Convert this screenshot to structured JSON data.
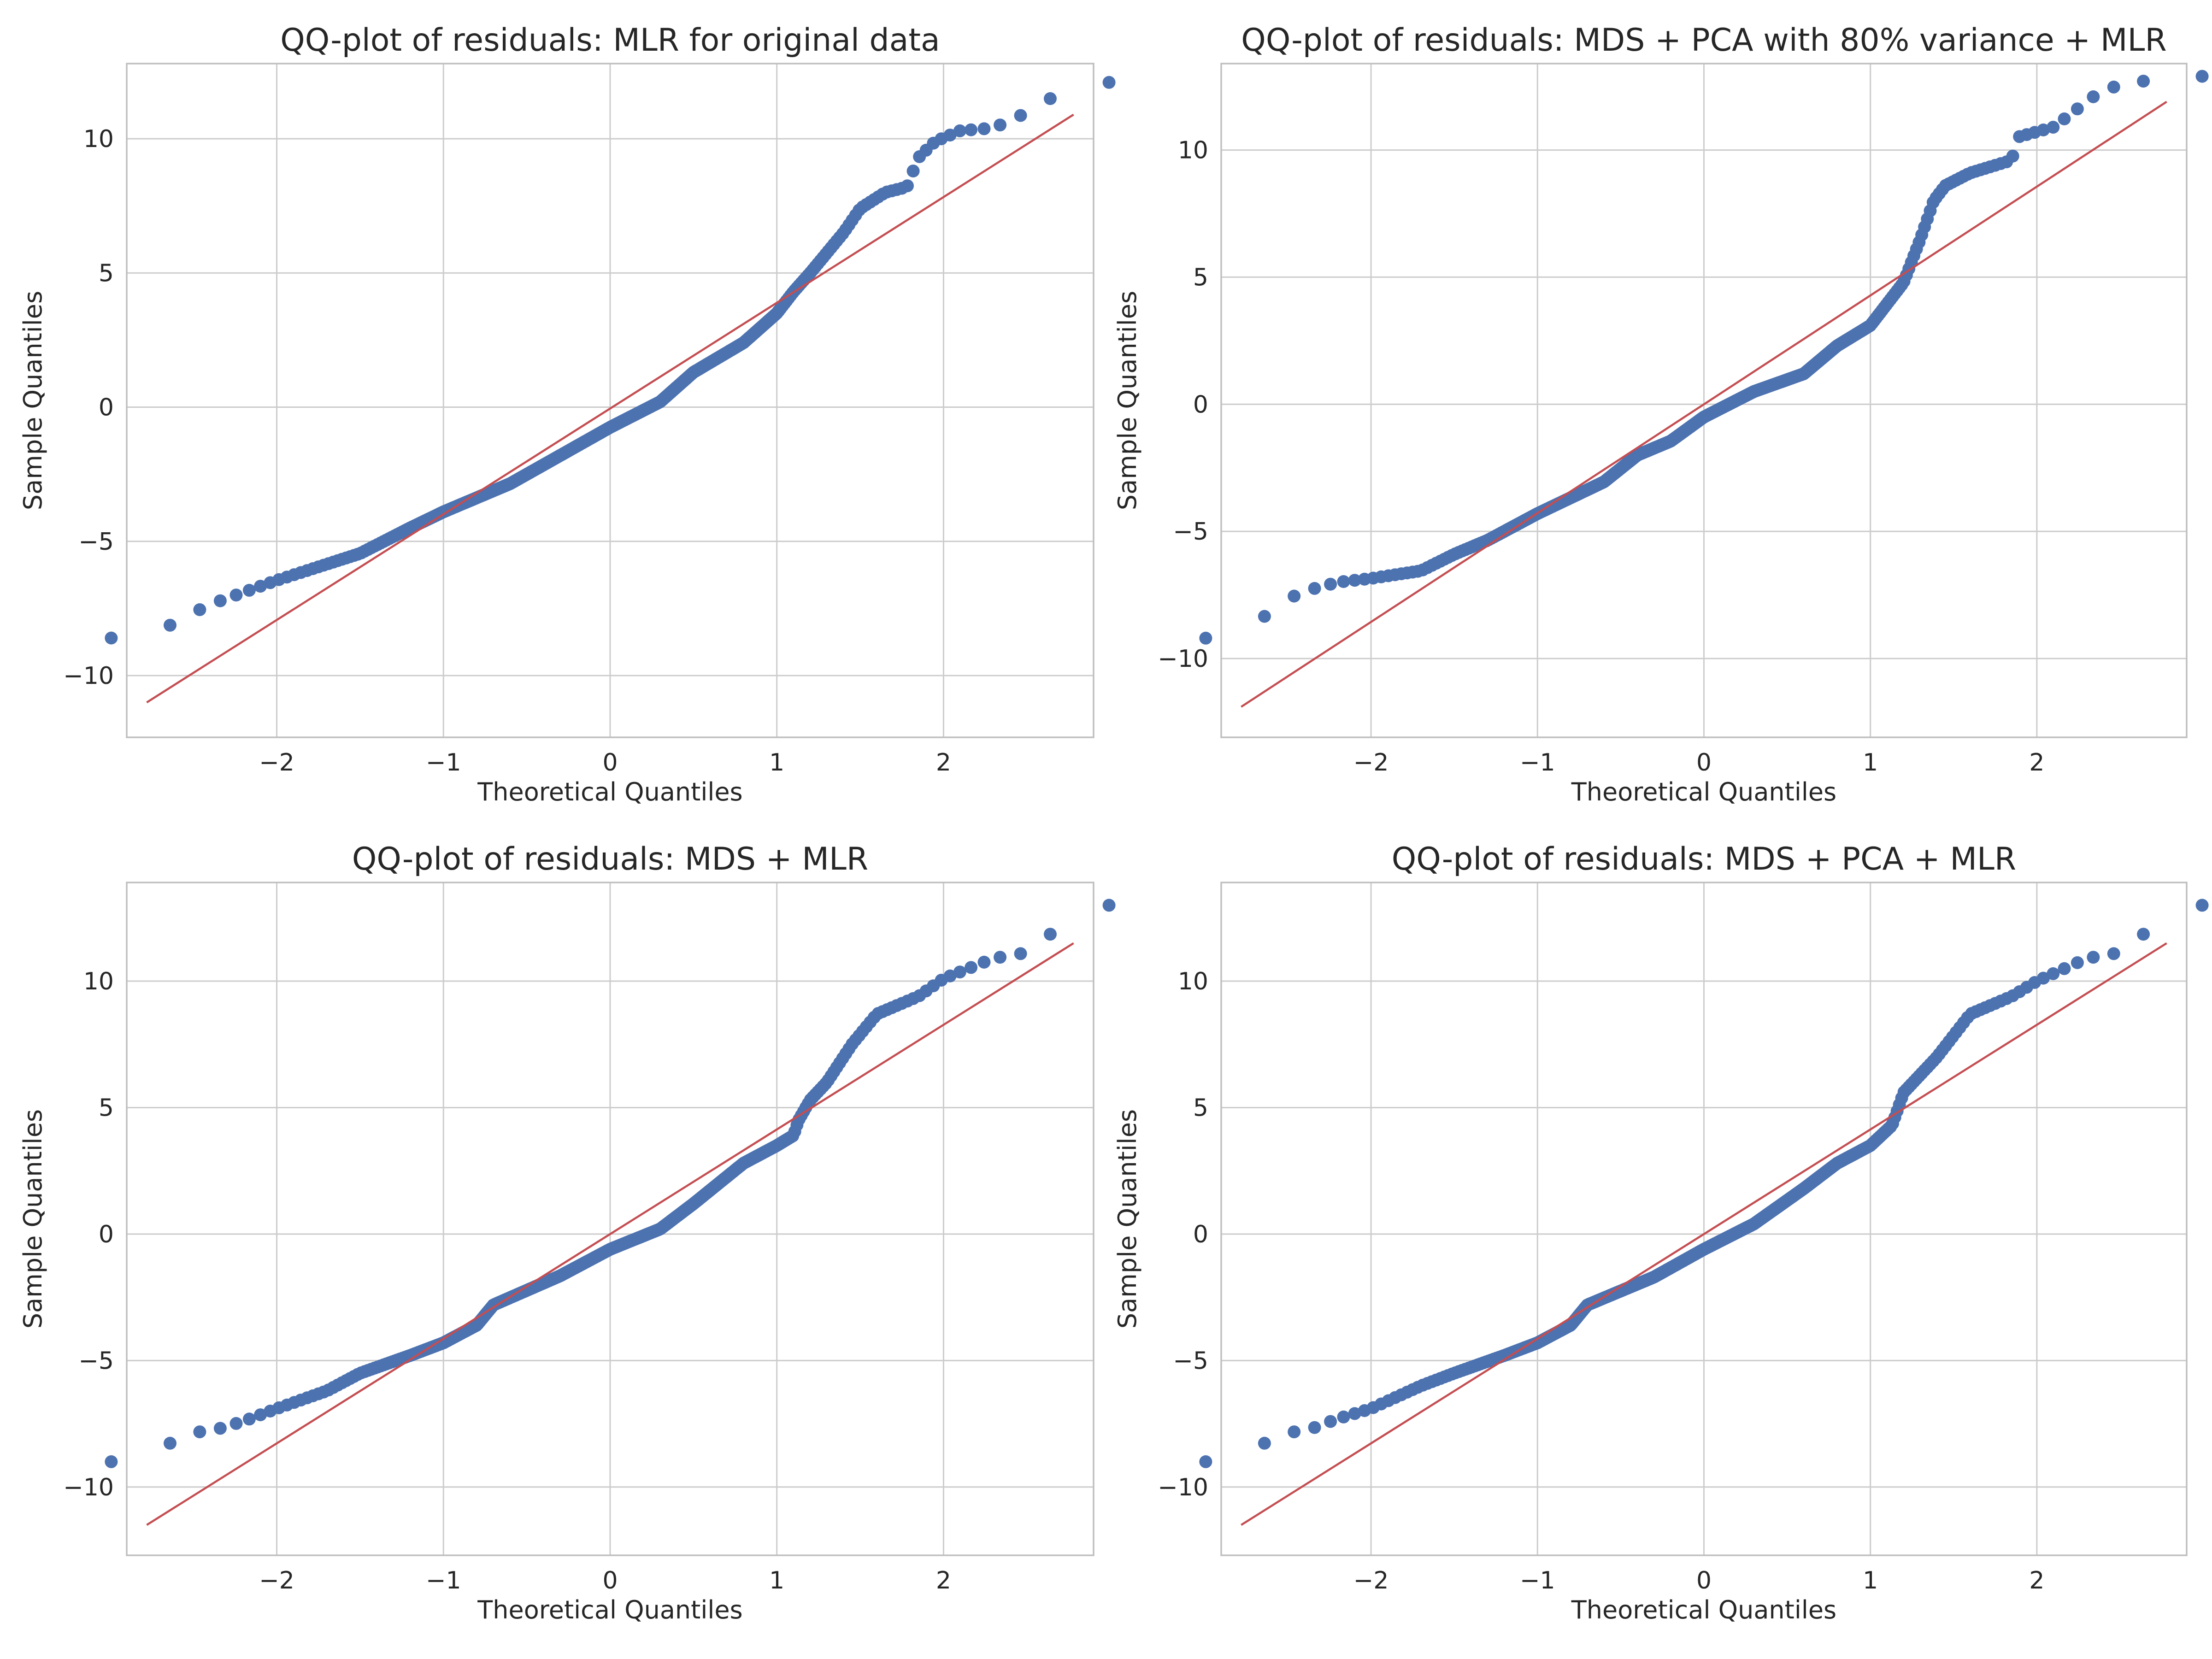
{
  "colors": {
    "points": "#4c72b0",
    "reference_line": "#c44e52",
    "grid": "#cccccc",
    "text": "#262626"
  },
  "chart_data": [
    {
      "type": "scatter",
      "title": "QQ-plot of residuals: MLR for original data",
      "xlabel": "Theoretical Quantiles",
      "ylabel": "Sample Quantiles",
      "xlim": [
        -2.9,
        2.9
      ],
      "ylim": [
        -12.3,
        12.8
      ],
      "xticks": [
        -2,
        -1,
        0,
        1,
        2
      ],
      "yticks": [
        -10,
        -5,
        0,
        5,
        10
      ],
      "xtick_labels": [
        "−2",
        "−1",
        "0",
        "1",
        "2"
      ],
      "ytick_labels": [
        "−10",
        "−5",
        "0",
        "5",
        "10"
      ],
      "grid": true,
      "reference_line": {
        "x": [
          -2.78,
          2.78
        ],
        "y": [
          -11.0,
          10.9
        ]
      },
      "quantile_profile": [
        [
          -2.78,
          -8.6
        ],
        [
          -2.56,
          -7.85
        ],
        [
          -2.4,
          -7.35
        ],
        [
          -2.2,
          -6.9
        ],
        [
          -2.0,
          -6.45
        ],
        [
          -1.8,
          -6.05
        ],
        [
          -1.5,
          -5.45
        ],
        [
          -1.2,
          -4.5
        ],
        [
          -1.0,
          -3.9
        ],
        [
          -0.6,
          -2.85
        ],
        [
          -0.3,
          -1.8
        ],
        [
          0.0,
          -0.75
        ],
        [
          0.3,
          0.2
        ],
        [
          0.5,
          1.3
        ],
        [
          0.8,
          2.4
        ],
        [
          1.0,
          3.5
        ],
        [
          1.1,
          4.3
        ],
        [
          1.2,
          5.0
        ],
        [
          1.4,
          6.5
        ],
        [
          1.5,
          7.4
        ],
        [
          1.65,
          8.0
        ],
        [
          1.78,
          8.2
        ],
        [
          1.85,
          9.3
        ],
        [
          1.95,
          9.9
        ],
        [
          2.1,
          10.3
        ],
        [
          2.3,
          10.4
        ],
        [
          2.56,
          11.15
        ],
        [
          2.78,
          12.1
        ]
      ]
    },
    {
      "type": "scatter",
      "title": "QQ-plot of residuals: MDS + PCA with 80% variance + MLR",
      "xlabel": "Theoretical Quantiles",
      "ylabel": "Sample Quantiles",
      "xlim": [
        -2.9,
        2.9
      ],
      "ylim": [
        -13.1,
        13.4
      ],
      "xticks": [
        -2,
        -1,
        0,
        1,
        2
      ],
      "yticks": [
        -10,
        -5,
        0,
        5,
        10
      ],
      "xtick_labels": [
        "−2",
        "−1",
        "0",
        "1",
        "2"
      ],
      "ytick_labels": [
        "−10",
        "−5",
        "0",
        "5",
        "10"
      ],
      "grid": true,
      "reference_line": {
        "x": [
          -2.78,
          2.78
        ],
        "y": [
          -11.9,
          11.9
        ]
      },
      "quantile_profile": [
        [
          -2.78,
          -9.2
        ],
        [
          -2.56,
          -7.85
        ],
        [
          -2.4,
          -7.35
        ],
        [
          -2.2,
          -7.0
        ],
        [
          -2.0,
          -6.85
        ],
        [
          -1.7,
          -6.55
        ],
        [
          -1.5,
          -5.9
        ],
        [
          -1.3,
          -5.35
        ],
        [
          -1.0,
          -4.3
        ],
        [
          -0.6,
          -3.05
        ],
        [
          -0.4,
          -2.0
        ],
        [
          -0.2,
          -1.45
        ],
        [
          0.0,
          -0.5
        ],
        [
          0.3,
          0.5
        ],
        [
          0.6,
          1.2
        ],
        [
          0.8,
          2.3
        ],
        [
          1.0,
          3.1
        ],
        [
          1.2,
          4.8
        ],
        [
          1.3,
          6.5
        ],
        [
          1.38,
          8.0
        ],
        [
          1.45,
          8.6
        ],
        [
          1.6,
          9.1
        ],
        [
          1.85,
          9.6
        ],
        [
          1.88,
          10.5
        ],
        [
          2.1,
          10.9
        ],
        [
          2.4,
          12.4
        ],
        [
          2.56,
          12.6
        ],
        [
          2.78,
          12.9
        ]
      ]
    },
    {
      "type": "scatter",
      "title": "QQ-plot of residuals: MDS + MLR",
      "xlabel": "Theoretical Quantiles",
      "ylabel": "Sample Quantiles",
      "xlim": [
        -2.9,
        2.9
      ],
      "ylim": [
        -12.7,
        13.9
      ],
      "xticks": [
        -2,
        -1,
        0,
        1,
        2
      ],
      "yticks": [
        -10,
        -5,
        0,
        5,
        10
      ],
      "xtick_labels": [
        "−2",
        "−1",
        "0",
        "1",
        "2"
      ],
      "ytick_labels": [
        "−10",
        "−5",
        "0",
        "5",
        "10"
      ],
      "grid": true,
      "reference_line": {
        "x": [
          -2.78,
          2.78
        ],
        "y": [
          -11.5,
          11.5
        ]
      },
      "quantile_profile": [
        [
          -2.78,
          -9.0
        ],
        [
          -2.56,
          -7.85
        ],
        [
          -2.4,
          -7.8
        ],
        [
          -2.2,
          -7.4
        ],
        [
          -2.0,
          -6.9
        ],
        [
          -1.7,
          -6.2
        ],
        [
          -1.5,
          -5.5
        ],
        [
          -1.2,
          -4.8
        ],
        [
          -1.0,
          -4.3
        ],
        [
          -0.8,
          -3.6
        ],
        [
          -0.7,
          -2.8
        ],
        [
          -0.3,
          -1.65
        ],
        [
          0.0,
          -0.6
        ],
        [
          0.3,
          0.2
        ],
        [
          0.5,
          1.2
        ],
        [
          0.8,
          2.8
        ],
        [
          1.0,
          3.5
        ],
        [
          1.1,
          3.9
        ],
        [
          1.13,
          4.5
        ],
        [
          1.2,
          5.3
        ],
        [
          1.3,
          6.0
        ],
        [
          1.45,
          7.5
        ],
        [
          1.6,
          8.7
        ],
        [
          1.85,
          9.4
        ],
        [
          2.0,
          10.1
        ],
        [
          2.3,
          10.9
        ],
        [
          2.56,
          11.2
        ],
        [
          2.78,
          13.0
        ]
      ]
    },
    {
      "type": "scatter",
      "title": "QQ-plot of residuals: MDS + PCA + MLR",
      "xlabel": "Theoretical Quantiles",
      "ylabel": "Sample Quantiles",
      "xlim": [
        -2.9,
        2.9
      ],
      "ylim": [
        -12.7,
        13.9
      ],
      "xticks": [
        -2,
        -1,
        0,
        1,
        2
      ],
      "yticks": [
        -10,
        -5,
        0,
        5,
        10
      ],
      "xtick_labels": [
        "−2",
        "−1",
        "0",
        "1",
        "2"
      ],
      "ytick_labels": [
        "−10",
        "−5",
        "0",
        "5",
        "10"
      ],
      "grid": true,
      "reference_line": {
        "x": [
          -2.78,
          2.78
        ],
        "y": [
          -11.5,
          11.5
        ]
      },
      "quantile_profile": [
        [
          -2.78,
          -9.0
        ],
        [
          -2.56,
          -7.85
        ],
        [
          -2.4,
          -7.8
        ],
        [
          -2.2,
          -7.3
        ],
        [
          -2.0,
          -6.9
        ],
        [
          -1.7,
          -6.0
        ],
        [
          -1.5,
          -5.5
        ],
        [
          -1.2,
          -4.8
        ],
        [
          -1.0,
          -4.3
        ],
        [
          -0.8,
          -3.6
        ],
        [
          -0.7,
          -2.8
        ],
        [
          -0.3,
          -1.7
        ],
        [
          0.0,
          -0.6
        ],
        [
          0.3,
          0.4
        ],
        [
          0.6,
          1.8
        ],
        [
          0.8,
          2.8
        ],
        [
          1.0,
          3.5
        ],
        [
          1.13,
          4.3
        ],
        [
          1.2,
          5.6
        ],
        [
          1.4,
          7.0
        ],
        [
          1.6,
          8.7
        ],
        [
          1.85,
          9.4
        ],
        [
          2.0,
          10.0
        ],
        [
          2.3,
          10.9
        ],
        [
          2.56,
          11.2
        ],
        [
          2.78,
          13.0
        ]
      ]
    }
  ]
}
